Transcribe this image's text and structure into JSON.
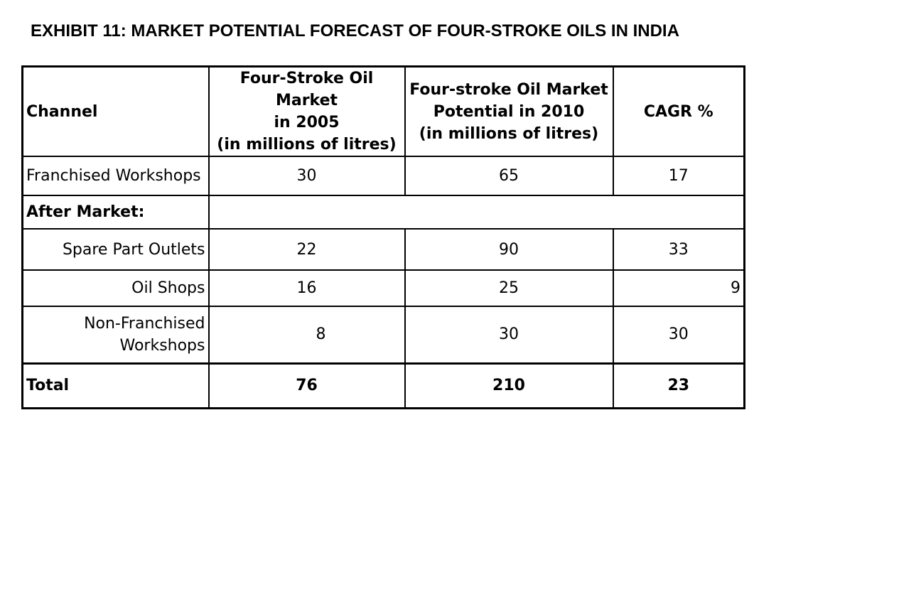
{
  "title": "EXHIBIT 11: MARKET POTENTIAL FORECAST OF FOUR-STROKE OILS IN INDIA",
  "table": {
    "headers": {
      "channel": "Channel",
      "market_2005": {
        "line1": "Four-Stroke Oil Market",
        "line2": "in 2005",
        "line3": "(in millions of litres)"
      },
      "potential_2010": {
        "line1": "Four-stroke Oil Market",
        "line2": "Potential in 2010",
        "line3": "(in millions of litres)"
      },
      "cagr": "CAGR %"
    },
    "rows": [
      {
        "channel": "Franchised Workshops",
        "market_2005": "30",
        "potential_2010": "65",
        "cagr": "17"
      },
      {
        "channel": "After Market:"
      },
      {
        "channel": "Spare Part Outlets",
        "market_2005": "22",
        "potential_2010": "90",
        "cagr": "33"
      },
      {
        "channel": "Oil Shops",
        "market_2005": "16",
        "potential_2010": "25",
        "cagr": "9"
      },
      {
        "channel_line1": "Non-Franchised",
        "channel_line2": "Workshops",
        "market_2005": "8",
        "potential_2010": "30",
        "cagr": "30"
      }
    ],
    "total": {
      "channel": "Total",
      "market_2005": "76",
      "potential_2010": "210",
      "cagr": "23"
    }
  }
}
